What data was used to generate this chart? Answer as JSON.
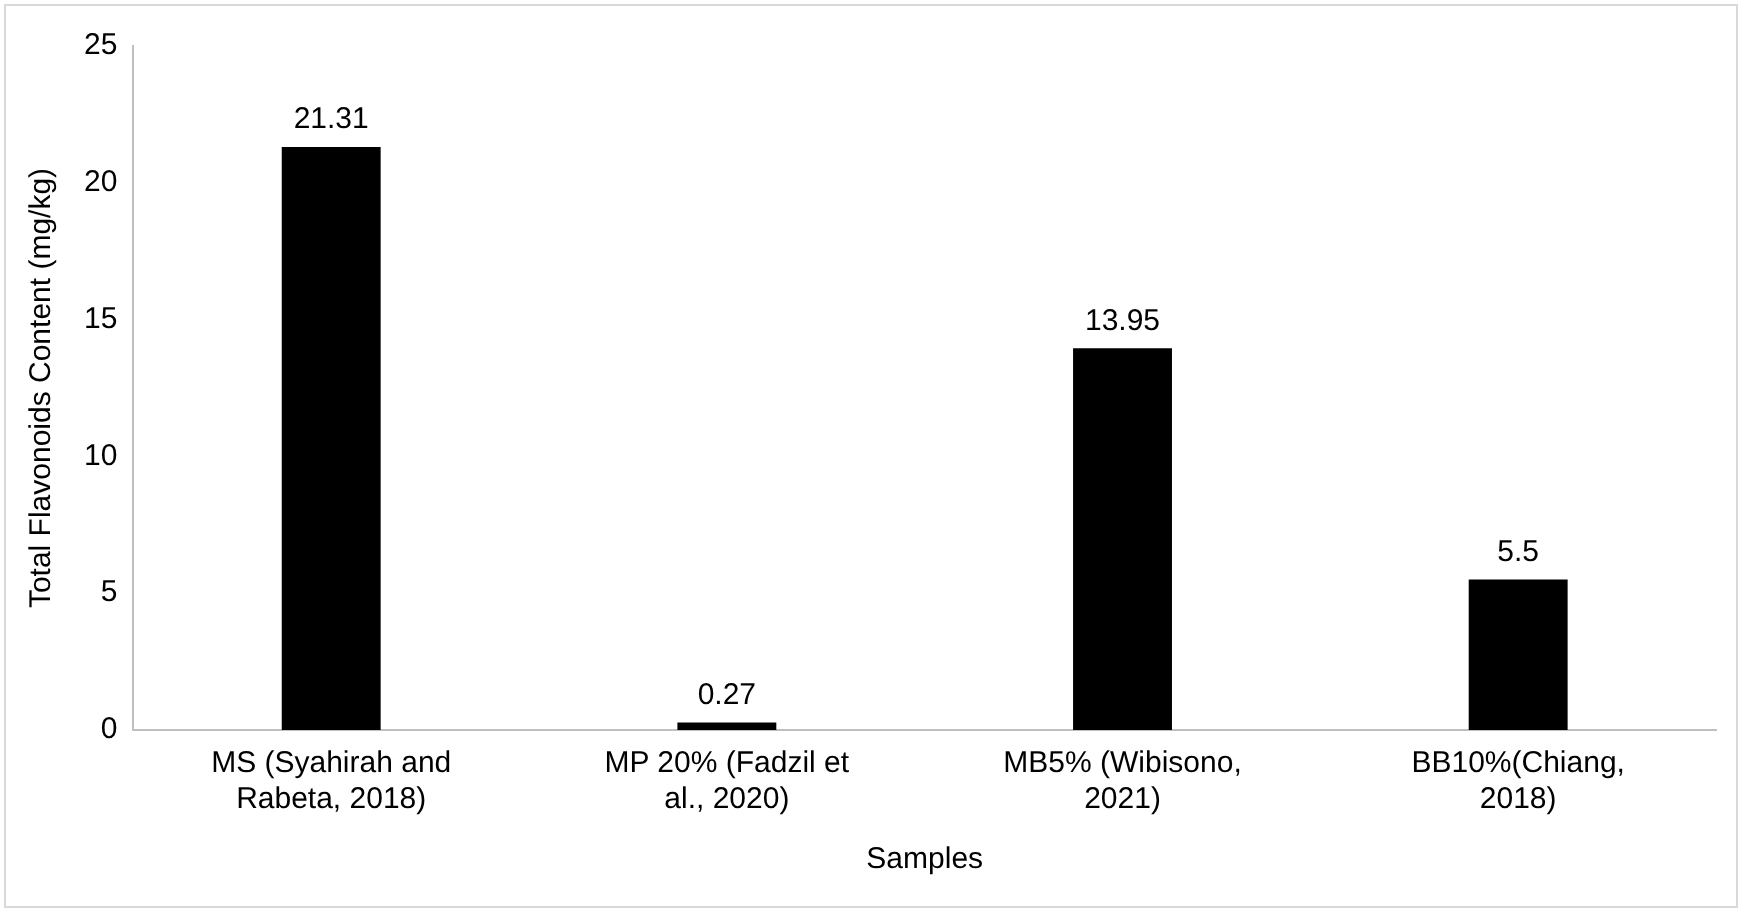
{
  "chart_data": {
    "type": "bar",
    "xlabel": "Samples",
    "ylabel": "Total Flavonoids Content (mg/kg)",
    "categories": [
      "MS (Syahirah and Rabeta, 2018)",
      "MP 20% (Fadzil et al., 2020)",
      "MB5% (Wibisono, 2021)",
      "BB10%(Chiang, 2018)"
    ],
    "values": [
      21.31,
      0.27,
      13.95,
      5.5
    ],
    "color": "#000000",
    "ylim": [
      0,
      25
    ],
    "yticks": [
      0,
      5,
      10,
      15,
      20,
      25
    ],
    "grid": false,
    "data_labels": true
  }
}
